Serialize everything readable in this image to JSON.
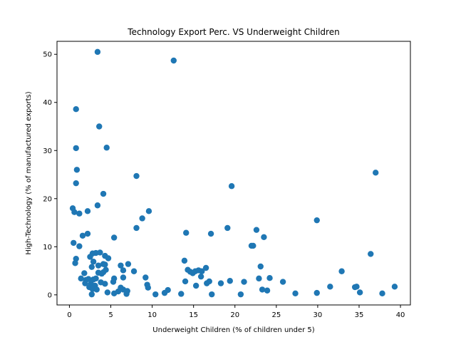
{
  "chart_data": {
    "type": "scatter",
    "title": "Technology Export Perc. VS Underweight Children",
    "xlabel": "Underweight Children (% of children under 5)",
    "ylabel": "High-Technology (% of manufactured exports)",
    "xlim": [
      -1.5,
      41.2
    ],
    "ylim": [
      -2.1,
      52.7
    ],
    "xticks": [
      0,
      5,
      10,
      15,
      20,
      25,
      30,
      35,
      40
    ],
    "yticks": [
      0,
      10,
      20,
      30,
      40,
      50
    ],
    "xtick_labels": [
      "0",
      "5",
      "10",
      "15",
      "20",
      "25",
      "30",
      "35",
      "40"
    ],
    "ytick_labels": [
      "0",
      "10",
      "20",
      "30",
      "40",
      "50"
    ],
    "grid": false,
    "marker_color": "#1f77b4",
    "points": [
      [
        3.4,
        50.5
      ],
      [
        12.6,
        48.7
      ],
      [
        0.8,
        38.6
      ],
      [
        3.6,
        35.0
      ],
      [
        0.8,
        30.5
      ],
      [
        4.5,
        30.6
      ],
      [
        37.0,
        25.4
      ],
      [
        0.9,
        26.0
      ],
      [
        8.1,
        24.7
      ],
      [
        19.6,
        22.6
      ],
      [
        0.8,
        23.2
      ],
      [
        4.1,
        21.0
      ],
      [
        0.4,
        18.0
      ],
      [
        3.4,
        18.6
      ],
      [
        2.2,
        17.4
      ],
      [
        9.6,
        17.4
      ],
      [
        0.6,
        17.2
      ],
      [
        1.2,
        16.9
      ],
      [
        29.9,
        15.5
      ],
      [
        8.8,
        15.9
      ],
      [
        8.1,
        13.9
      ],
      [
        19.1,
        13.9
      ],
      [
        22.6,
        13.5
      ],
      [
        14.1,
        12.9
      ],
      [
        17.1,
        12.7
      ],
      [
        23.5,
        12.0
      ],
      [
        5.4,
        11.9
      ],
      [
        2.2,
        12.7
      ],
      [
        1.6,
        12.3
      ],
      [
        0.5,
        10.8
      ],
      [
        1.2,
        10.1
      ],
      [
        22.0,
        10.2
      ],
      [
        22.2,
        10.2
      ],
      [
        36.4,
        8.5
      ],
      [
        2.8,
        8.6
      ],
      [
        3.2,
        8.7
      ],
      [
        3.7,
        8.8
      ],
      [
        4.3,
        8.1
      ],
      [
        2.5,
        7.9
      ],
      [
        4.7,
        7.6
      ],
      [
        0.8,
        7.5
      ],
      [
        13.9,
        7.1
      ],
      [
        0.7,
        6.6
      ],
      [
        2.9,
        6.9
      ],
      [
        3.5,
        6.1
      ],
      [
        4.1,
        6.4
      ],
      [
        4.3,
        6.3
      ],
      [
        6.2,
        6.1
      ],
      [
        7.1,
        6.4
      ],
      [
        23.1,
        5.9
      ],
      [
        2.7,
        5.8
      ],
      [
        4.4,
        5.2
      ],
      [
        6.5,
        5.1
      ],
      [
        16.5,
        5.6
      ],
      [
        14.6,
        4.8
      ],
      [
        14.9,
        4.5
      ],
      [
        15.2,
        4.9
      ],
      [
        15.6,
        5.1
      ],
      [
        14.3,
        5.2
      ],
      [
        16.0,
        4.9
      ],
      [
        1.8,
        4.5
      ],
      [
        3.5,
        4.6
      ],
      [
        3.9,
        4.4
      ],
      [
        4.1,
        4.7
      ],
      [
        7.8,
        4.9
      ],
      [
        32.9,
        4.9
      ],
      [
        1.4,
        3.4
      ],
      [
        2.0,
        3.1
      ],
      [
        2.3,
        3.3
      ],
      [
        2.9,
        3.2
      ],
      [
        3.2,
        3.4
      ],
      [
        5.4,
        3.4
      ],
      [
        6.5,
        3.6
      ],
      [
        9.2,
        3.6
      ],
      [
        15.9,
        3.8
      ],
      [
        24.2,
        3.5
      ],
      [
        22.9,
        3.4
      ],
      [
        2.6,
        2.3
      ],
      [
        1.9,
        2.4
      ],
      [
        3.8,
        2.6
      ],
      [
        4.3,
        2.3
      ],
      [
        5.3,
        2.7
      ],
      [
        14.0,
        2.8
      ],
      [
        16.6,
        2.4
      ],
      [
        16.9,
        2.8
      ],
      [
        18.3,
        2.4
      ],
      [
        19.4,
        2.9
      ],
      [
        21.1,
        2.7
      ],
      [
        25.8,
        2.7
      ],
      [
        9.4,
        2.1
      ],
      [
        2.4,
        1.6
      ],
      [
        3.1,
        1.9
      ],
      [
        6.2,
        1.5
      ],
      [
        9.5,
        1.5
      ],
      [
        15.3,
        1.9
      ],
      [
        31.5,
        1.7
      ],
      [
        34.7,
        1.7
      ],
      [
        39.3,
        1.7
      ],
      [
        34.5,
        1.6
      ],
      [
        2.8,
        1.2
      ],
      [
        3.3,
        1.1
      ],
      [
        6.5,
        1.1
      ],
      [
        7.0,
        0.8
      ],
      [
        11.9,
        1.0
      ],
      [
        23.3,
        1.1
      ],
      [
        23.9,
        0.9
      ],
      [
        2.7,
        0.1
      ],
      [
        4.6,
        0.5
      ],
      [
        5.4,
        0.3
      ],
      [
        5.9,
        0.7
      ],
      [
        6.9,
        0.2
      ],
      [
        10.4,
        0.1
      ],
      [
        11.5,
        0.4
      ],
      [
        13.5,
        0.2
      ],
      [
        17.2,
        0.1
      ],
      [
        20.7,
        0.1
      ],
      [
        27.3,
        0.3
      ],
      [
        29.9,
        0.4
      ],
      [
        35.1,
        0.5
      ],
      [
        37.8,
        0.3
      ]
    ]
  }
}
